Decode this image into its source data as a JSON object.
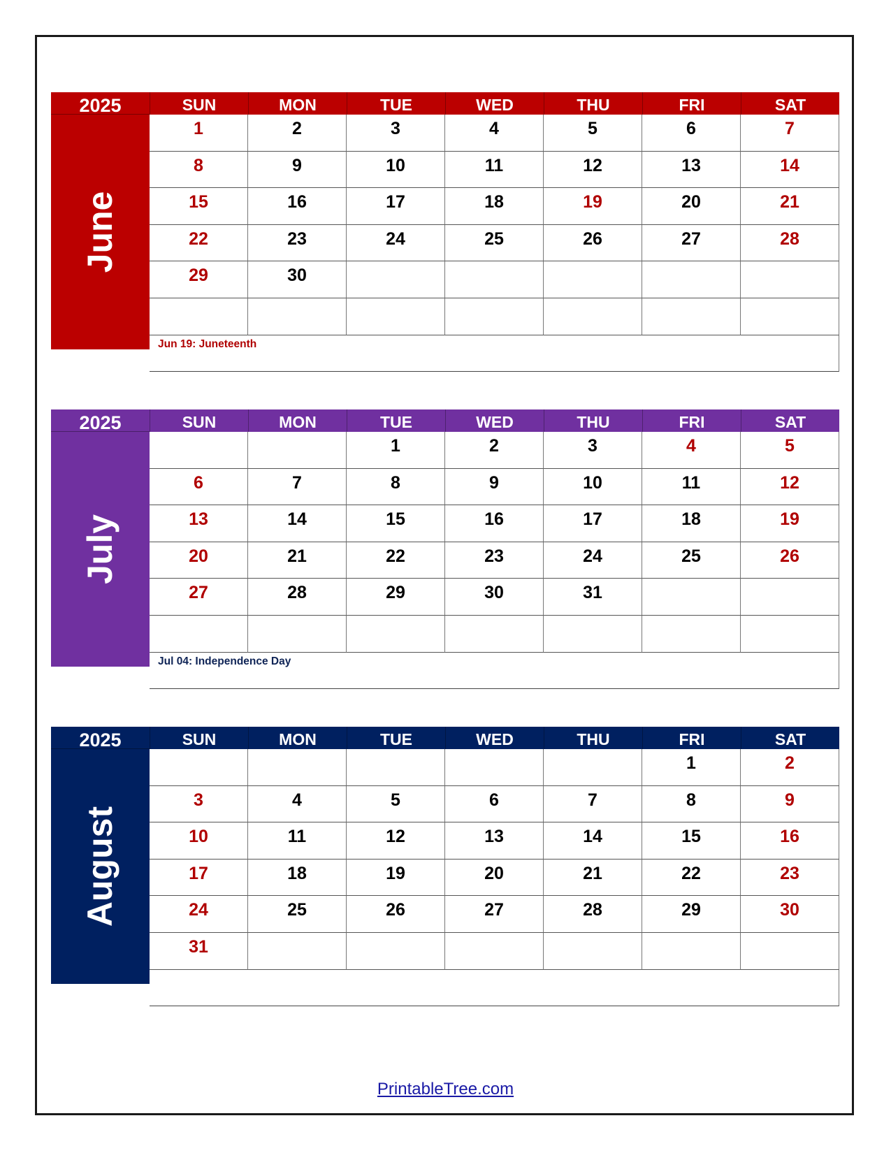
{
  "months": [
    {
      "year": "2025",
      "name": "June",
      "color": "#bb0000",
      "weekdays": [
        "SUN",
        "MON",
        "TUE",
        "WED",
        "THU",
        "FRI",
        "SAT"
      ],
      "weeks": [
        [
          "1",
          "2",
          "3",
          "4",
          "5",
          "6",
          "7"
        ],
        [
          "8",
          "9",
          "10",
          "11",
          "12",
          "13",
          "14"
        ],
        [
          "15",
          "16",
          "17",
          "18",
          "19",
          "20",
          "21"
        ],
        [
          "22",
          "23",
          "24",
          "25",
          "26",
          "27",
          "28"
        ],
        [
          "29",
          "30",
          "",
          "",
          "",
          "",
          ""
        ],
        [
          "",
          "",
          "",
          "",
          "",
          "",
          ""
        ]
      ],
      "highlighted_days": [
        "19"
      ],
      "note": "Jun 19: Juneteenth",
      "note_color": "#b00000"
    },
    {
      "year": "2025",
      "name": "July",
      "color": "#7030a0",
      "weekdays": [
        "SUN",
        "MON",
        "TUE",
        "WED",
        "THU",
        "FRI",
        "SAT"
      ],
      "weeks": [
        [
          "",
          "",
          "1",
          "2",
          "3",
          "4",
          "5"
        ],
        [
          "6",
          "7",
          "8",
          "9",
          "10",
          "11",
          "12"
        ],
        [
          "13",
          "14",
          "15",
          "16",
          "17",
          "18",
          "19"
        ],
        [
          "20",
          "21",
          "22",
          "23",
          "24",
          "25",
          "26"
        ],
        [
          "27",
          "28",
          "29",
          "30",
          "31",
          "",
          ""
        ],
        [
          "",
          "",
          "",
          "",
          "",
          "",
          ""
        ]
      ],
      "highlighted_days": [
        "4"
      ],
      "note": "Jul 04: Independence Day",
      "note_color": "#0f2456"
    },
    {
      "year": "2025",
      "name": "August",
      "color": "#002060",
      "weekdays": [
        "SUN",
        "MON",
        "TUE",
        "WED",
        "THU",
        "FRI",
        "SAT"
      ],
      "weeks": [
        [
          "",
          "",
          "",
          "",
          "",
          "1",
          "2"
        ],
        [
          "3",
          "4",
          "5",
          "6",
          "7",
          "8",
          "9"
        ],
        [
          "10",
          "11",
          "12",
          "13",
          "14",
          "15",
          "16"
        ],
        [
          "17",
          "18",
          "19",
          "20",
          "21",
          "22",
          "23"
        ],
        [
          "24",
          "25",
          "26",
          "27",
          "28",
          "29",
          "30"
        ],
        [
          "31",
          "",
          "",
          "",
          "",
          "",
          ""
        ]
      ],
      "highlighted_days": [],
      "note": "",
      "note_color": "#0f2456"
    }
  ],
  "weekend_color": "#b00000",
  "footer": {
    "link_text": "PrintableTree.com"
  }
}
